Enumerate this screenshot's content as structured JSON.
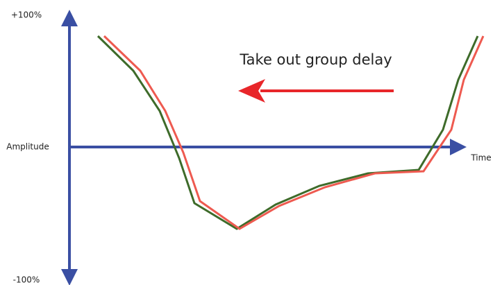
{
  "axes": {
    "y_top": "+100%",
    "y_middle": "Amplitude",
    "y_bottom": "-100%",
    "x_label": "Time"
  },
  "annotation": "Take out group delay"
}
